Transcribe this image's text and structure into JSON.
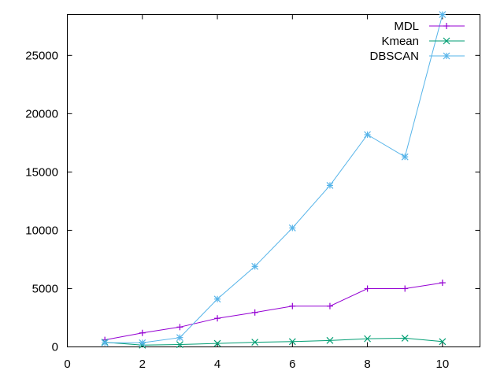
{
  "chart_data": {
    "type": "line",
    "title": "",
    "xlabel": "",
    "ylabel": "",
    "xlim": [
      0,
      11
    ],
    "ylim": [
      0,
      28500
    ],
    "xticks": [
      0,
      2,
      4,
      6,
      8,
      10
    ],
    "yticks": [
      0,
      5000,
      10000,
      15000,
      20000,
      25000
    ],
    "grid": false,
    "legend_position": "top-right",
    "series": [
      {
        "name": "MDL",
        "color": "#9400d3",
        "marker": "plus",
        "x": [
          1,
          2,
          3,
          4,
          5,
          6,
          7,
          8,
          9,
          10
        ],
        "y": [
          600,
          1200,
          1700,
          2450,
          2950,
          3500,
          3500,
          5000,
          5000,
          5500
        ]
      },
      {
        "name": "Kmean",
        "color": "#009e73",
        "marker": "cross",
        "x": [
          1,
          2,
          3,
          4,
          5,
          6,
          7,
          8,
          9,
          10
        ],
        "y": [
          400,
          150,
          200,
          300,
          400,
          450,
          550,
          700,
          750,
          450
        ]
      },
      {
        "name": "DBSCAN",
        "color": "#56b4e9",
        "marker": "star",
        "x": [
          1,
          2,
          3,
          4,
          5,
          6,
          7,
          8,
          9,
          10
        ],
        "y": [
          350,
          350,
          800,
          4100,
          6900,
          10200,
          13850,
          18200,
          16300,
          28500
        ]
      }
    ]
  }
}
